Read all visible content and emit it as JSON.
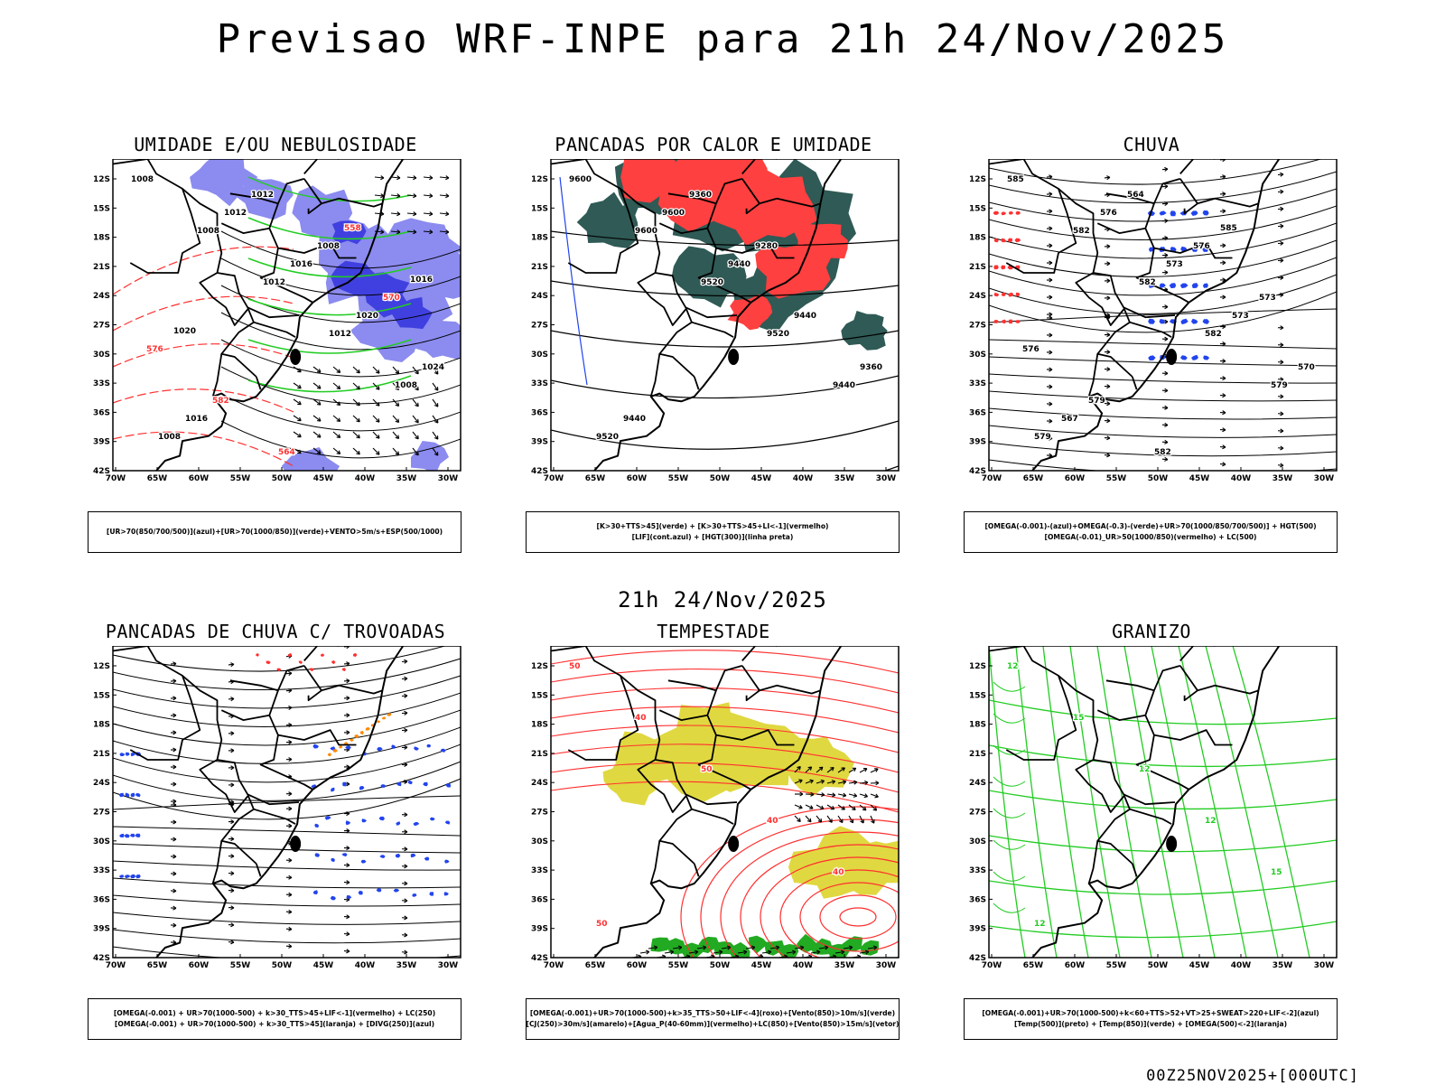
{
  "title": "Previsao WRF-INPE  para 21h 24/Nov/2025",
  "mid_time": "21h 24/Nov/2025",
  "footer_run": "00Z25NOV2025+[000UTC]",
  "axes": {
    "lat_labels": [
      "12S",
      "15S",
      "18S",
      "21S",
      "24S",
      "27S",
      "30S",
      "33S",
      "36S",
      "39S",
      "42S"
    ],
    "lon_labels": [
      "70W",
      "65W",
      "60W",
      "55W",
      "50W",
      "45W",
      "40W",
      "35W",
      "30W"
    ]
  },
  "colors": {
    "humidity_blue": "#8b8bf0",
    "humidity_dark_blue": "#4040e0",
    "green_contour": "#22cc22",
    "red_contour": "#ff3030",
    "red_fill": "#ff4040",
    "dark_teal": "#2f5a55",
    "yellow_fill": "#e0d840",
    "blue_dots": "#2244ee",
    "orange_dots": "#ff8800"
  },
  "panels": [
    {
      "id": "umidade",
      "title": "UMIDADE E/OU NEBULOSIDADE",
      "legend": [
        "[UR>70(850/700/500)](azul)+[UR>70(1000/850)](verde)+VENTO>5m/s+ESP(500/1000)"
      ],
      "contour_labels": [
        "1008",
        "1008",
        "1012",
        "1012",
        "1008",
        "1008",
        "1012",
        "1016",
        "1020",
        "1024",
        "1016",
        "1012",
        "1008",
        "570",
        "576",
        "582",
        "564",
        "558",
        "1016",
        "1020"
      ]
    },
    {
      "id": "pancadas-calor",
      "title": "PANCADAS POR CALOR E UMIDADE",
      "legend": [
        "[K>30+TTS>45](verde) + [K>30+TTS>45+LI<-1](vermelho)",
        "[LIF](cont.azul) + [HGT(300)](linha preta)"
      ],
      "contour_labels": [
        "9600",
        "9600",
        "9520",
        "9520",
        "9440",
        "9520",
        "9600",
        "9440",
        "9440",
        "9360",
        "9440",
        "9360",
        "9280"
      ]
    },
    {
      "id": "chuva",
      "title": "CHUVA",
      "legend": [
        "[OMEGA(-0.001)-(azul)+OMEGA(-0.3)-(verde)+UR>70(1000/850/700/500)] + HGT(500)",
        "[OMEGA(-0.01)_UR>50(1000/850)(vermelho) + LC(500)"
      ],
      "contour_labels": [
        "585",
        "582",
        "582",
        "582",
        "579",
        "579",
        "576",
        "573",
        "573",
        "570",
        "567",
        "564",
        "576",
        "573",
        "576",
        "579",
        "582",
        "585"
      ]
    },
    {
      "id": "trovoadas",
      "title": "PANCADAS DE CHUVA C/ TROVOADAS",
      "legend": [
        "[OMEGA(-0.001) + UR>70(1000-500) + k>30_TTS>45+LIF<-1](vermelho) + LC(250)",
        "[OMEGA(-0.001) + UR>70(1000-500) + k>30_TTS>45](laranja) + [DIVG(250)](azul)"
      ],
      "contour_labels": []
    },
    {
      "id": "tempestade",
      "title": "TEMPESTADE",
      "legend": [
        "[OMEGA(-0.001)+UR>70(1000-500)+k>35_TTS>50+LIF<-4](roxo)+[Vento(850)>10m/s](verde)",
        "[CJ(250)>30m/s](amarelo)+[Agua_P(40-60mm)](vermelho)+LC(850)+[Vento(850)>15m/s](vetor)"
      ],
      "contour_labels": [
        "50",
        "40",
        "50",
        "40",
        "40",
        "50"
      ]
    },
    {
      "id": "granizo",
      "title": "GRANIZO",
      "legend": [
        "[OMEGA(-0.001)+UR>70(1000-500)+k<60+TTS>52+VT>25+SWEAT>220+LIF<-2](azul)",
        "[Temp(500)](preto) + [Temp(850)](verde) + [OMEGA(500)<-2](laranja)"
      ],
      "contour_labels": [
        "12",
        "15",
        "12",
        "12",
        "15",
        "12"
      ]
    }
  ]
}
